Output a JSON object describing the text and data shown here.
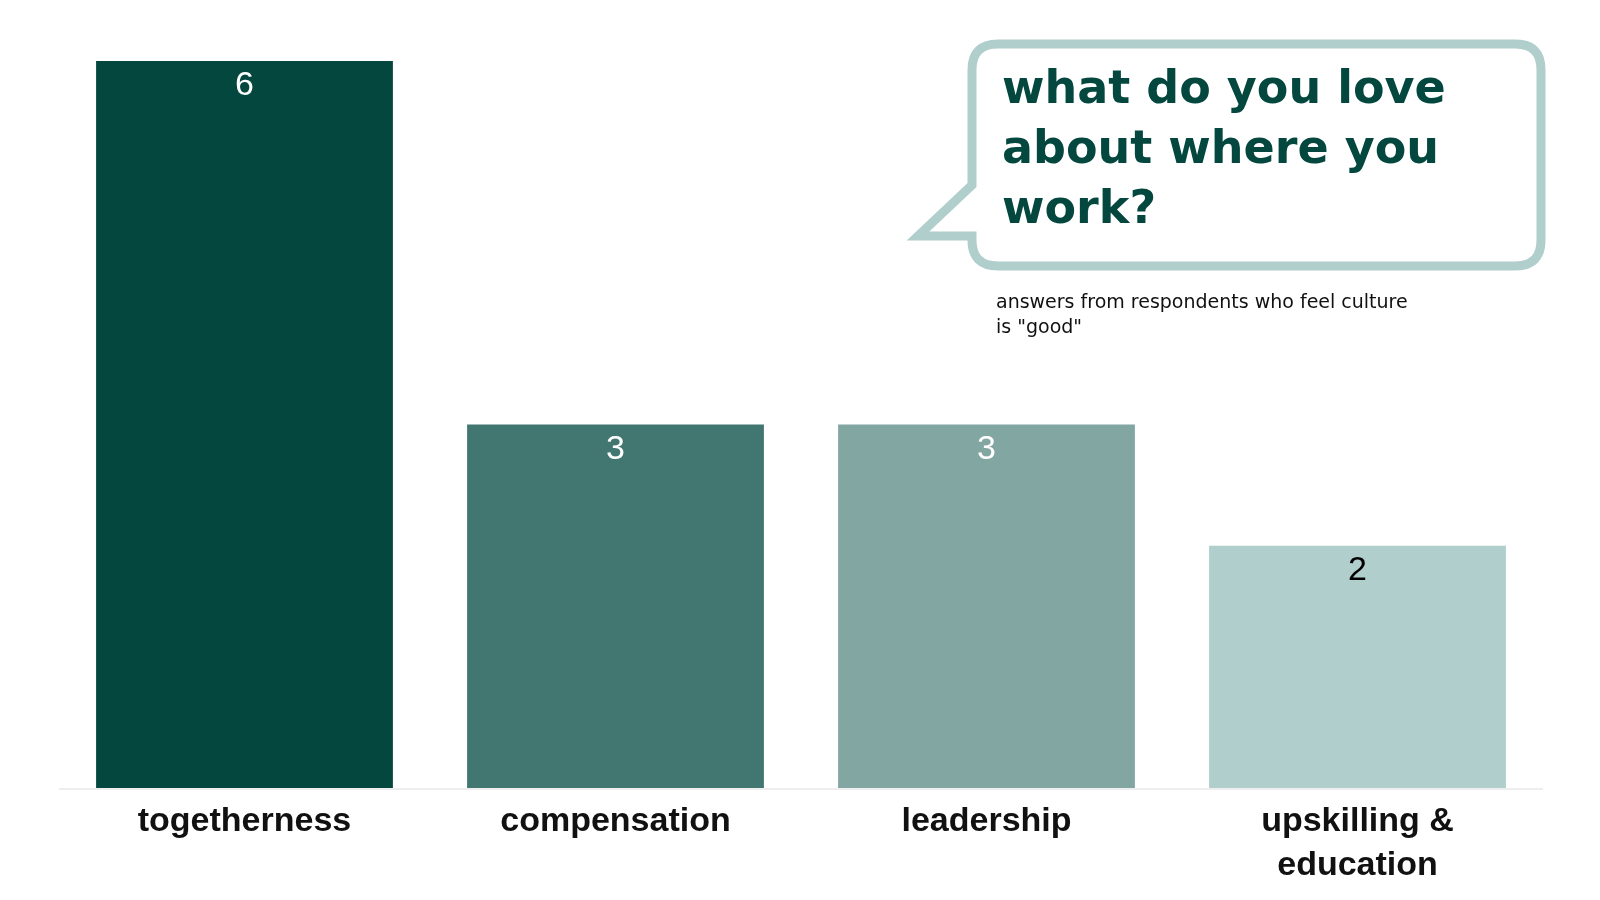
{
  "chart_data": {
    "type": "bar",
    "title": "what do you love about where you work?",
    "subtitle": "answers from respondents who feel culture is \"good\"",
    "categories": [
      "togetherness",
      "compensation",
      "leadership",
      "upskilling & education"
    ],
    "values": [
      6,
      3,
      3,
      2
    ],
    "colors": [
      "#03473e",
      "#417770",
      "#82a6a2",
      "#afcecc"
    ],
    "data_labels": true
  }
}
